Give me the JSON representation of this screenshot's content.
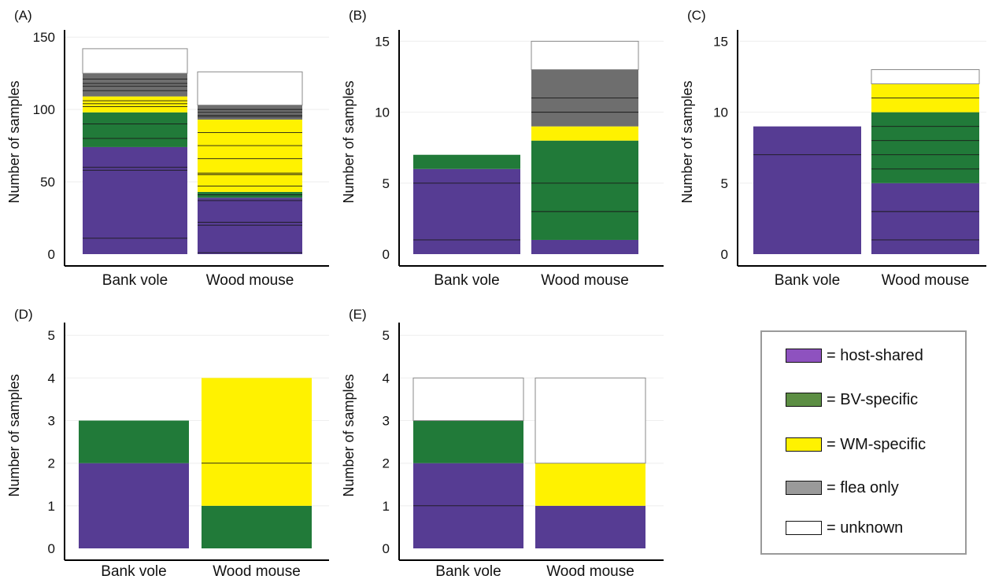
{
  "colors": {
    "host_shared": "#563C93",
    "bv_specific": "#217A39",
    "wm_specific": "#FFF200",
    "flea_only": "#6E6E6E",
    "unknown": "#FFFFFF"
  },
  "legend": {
    "items": [
      {
        "key": "host_shared",
        "label": "= host-shared",
        "swatch": "#8E52BF"
      },
      {
        "key": "bv_specific",
        "label": "= BV-specific",
        "swatch": "#5C8E43"
      },
      {
        "key": "wm_specific",
        "label": "= WM-specific",
        "swatch": "#FFF200"
      },
      {
        "key": "flea_only",
        "label": "= flea only",
        "swatch": "#9A9A9A"
      },
      {
        "key": "unknown",
        "label": "= unknown",
        "swatch": "#FFFFFF"
      }
    ]
  },
  "chart_data": [
    {
      "panel": "(A)",
      "type": "bar",
      "stacked": true,
      "ylabel": "Number of samples",
      "ylim": [
        0,
        155
      ],
      "yticks": [
        0,
        50,
        100,
        150
      ],
      "categories": [
        "Bank vole",
        "Wood mouse"
      ],
      "bars": [
        {
          "category": "Bank vole",
          "segments": [
            {
              "group": "host_shared",
              "value": 74,
              "splits": [
                11,
                58,
                60
              ]
            },
            {
              "group": "bv_specific",
              "value": 24,
              "splits": [
                80,
                90
              ]
            },
            {
              "group": "wm_specific",
              "value": 11,
              "splits": [
                102,
                104,
                106
              ]
            },
            {
              "group": "flea_only",
              "value": 16,
              "splits": [
                113,
                116,
                118,
                121
              ]
            },
            {
              "group": "unknown",
              "value": 17,
              "splits": []
            }
          ]
        },
        {
          "category": "Wood mouse",
          "segments": [
            {
              "group": "host_shared",
              "value": 39,
              "splits": [
                1,
                20,
                22,
                37
              ]
            },
            {
              "group": "bv_specific",
              "value": 4,
              "splits": [
                41
              ]
            },
            {
              "group": "wm_specific",
              "value": 50,
              "splits": [
                47,
                55,
                56,
                66,
                75,
                84
              ]
            },
            {
              "group": "flea_only",
              "value": 10,
              "splits": [
                95,
                96,
                98,
                100
              ]
            },
            {
              "group": "unknown",
              "value": 23,
              "splits": []
            }
          ]
        }
      ]
    },
    {
      "panel": "(B)",
      "type": "bar",
      "stacked": true,
      "ylabel": "Number of samples",
      "ylim": [
        0,
        15.8
      ],
      "yticks": [
        0,
        5,
        10,
        15
      ],
      "categories": [
        "Bank vole",
        "Wood mouse"
      ],
      "bars": [
        {
          "category": "Bank vole",
          "segments": [
            {
              "group": "host_shared",
              "value": 6,
              "splits": [
                1,
                5
              ]
            },
            {
              "group": "bv_specific",
              "value": 1,
              "splits": []
            }
          ]
        },
        {
          "category": "Wood mouse",
          "segments": [
            {
              "group": "host_shared",
              "value": 1,
              "splits": []
            },
            {
              "group": "bv_specific",
              "value": 7,
              "splits": [
                3,
                5
              ]
            },
            {
              "group": "wm_specific",
              "value": 1,
              "splits": []
            },
            {
              "group": "flea_only",
              "value": 4,
              "splits": [
                10,
                11
              ]
            },
            {
              "group": "unknown",
              "value": 2,
              "splits": []
            }
          ]
        }
      ]
    },
    {
      "panel": "(C)",
      "type": "bar",
      "stacked": true,
      "ylabel": "Number of samples",
      "ylim": [
        0,
        15.8
      ],
      "yticks": [
        0,
        5,
        10,
        15
      ],
      "categories": [
        "Bank vole",
        "Wood mouse"
      ],
      "bars": [
        {
          "category": "Bank vole",
          "segments": [
            {
              "group": "host_shared",
              "value": 9,
              "splits": [
                7
              ]
            }
          ]
        },
        {
          "category": "Wood mouse",
          "segments": [
            {
              "group": "host_shared",
              "value": 5,
              "splits": [
                1,
                3
              ]
            },
            {
              "group": "bv_specific",
              "value": 5,
              "splits": [
                6,
                7,
                8,
                9
              ]
            },
            {
              "group": "wm_specific",
              "value": 2,
              "splits": [
                11
              ]
            },
            {
              "group": "unknown",
              "value": 1,
              "splits": []
            }
          ]
        }
      ]
    },
    {
      "panel": "(D)",
      "type": "bar",
      "stacked": true,
      "ylabel": "Number of samples",
      "ylim": [
        0,
        5.3
      ],
      "yticks": [
        0,
        1,
        2,
        3,
        4,
        5
      ],
      "categories": [
        "Bank vole",
        "Wood mouse"
      ],
      "bars": [
        {
          "category": "Bank vole",
          "segments": [
            {
              "group": "host_shared",
              "value": 2,
              "splits": []
            },
            {
              "group": "bv_specific",
              "value": 1,
              "splits": []
            }
          ]
        },
        {
          "category": "Wood mouse",
          "segments": [
            {
              "group": "bv_specific",
              "value": 1,
              "splits": []
            },
            {
              "group": "wm_specific",
              "value": 3,
              "splits": [
                2
              ]
            }
          ]
        }
      ]
    },
    {
      "panel": "(E)",
      "type": "bar",
      "stacked": true,
      "ylabel": "Number of samples",
      "ylim": [
        0,
        5.3
      ],
      "yticks": [
        0,
        1,
        2,
        3,
        4,
        5
      ],
      "categories": [
        "Bank vole",
        "Wood mouse"
      ],
      "bars": [
        {
          "category": "Bank vole",
          "segments": [
            {
              "group": "host_shared",
              "value": 2,
              "splits": [
                1
              ]
            },
            {
              "group": "bv_specific",
              "value": 1,
              "splits": []
            },
            {
              "group": "unknown",
              "value": 1,
              "splits": []
            }
          ]
        },
        {
          "category": "Wood mouse",
          "segments": [
            {
              "group": "host_shared",
              "value": 1,
              "splits": []
            },
            {
              "group": "wm_specific",
              "value": 1,
              "splits": []
            },
            {
              "group": "unknown",
              "value": 2,
              "splits": []
            }
          ]
        }
      ]
    }
  ]
}
